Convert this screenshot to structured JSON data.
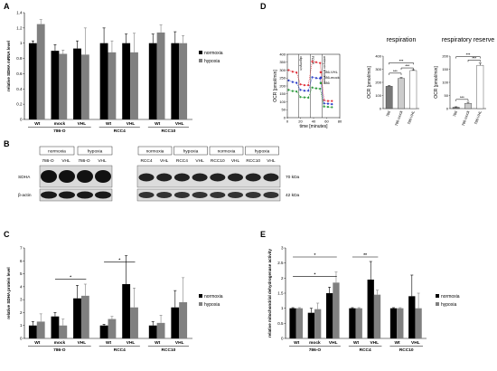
{
  "colors": {
    "normoxia": "#000000",
    "hypoxia": "#808080",
    "vhl_line": "#e0303a",
    "mock_line": "#2a3cc8",
    "c786_line": "#2a9a3a"
  },
  "panelA": {
    "letter": "A",
    "ylabel": "relative SDHA mRNA level",
    "legend": [
      "normoxia",
      "hypoxia"
    ],
    "sub_labels": [
      "Wt",
      "mock",
      "VHL",
      "Wt",
      "VHL",
      "Wt",
      "VHL"
    ],
    "groups": [
      "786-O",
      "RCC4",
      "RCC10"
    ],
    "chart_data": {
      "type": "bar",
      "categories": [
        "Wt",
        "mock",
        "VHL",
        "Wt",
        "VHL",
        "Wt",
        "VHL"
      ],
      "yticks": [
        "0",
        "0.2",
        "0.4",
        "0.6",
        "0.8",
        "1",
        "1.2",
        "1.4"
      ],
      "ylim": [
        0,
        1.4
      ],
      "series": [
        {
          "name": "normoxia",
          "values": [
            1.0,
            0.9,
            0.93,
            1.0,
            1.0,
            1.0,
            1.0
          ],
          "errors": [
            0.03,
            0.08,
            0.1,
            0.2,
            0.12,
            0.12,
            0.15
          ]
        },
        {
          "name": "hypoxia",
          "values": [
            1.25,
            0.86,
            0.85,
            0.88,
            0.88,
            1.14,
            1.0
          ],
          "errors": [
            0.06,
            0.05,
            0.35,
            0.15,
            0.25,
            0.1,
            0.1
          ]
        }
      ]
    }
  },
  "panelB": {
    "letter": "B",
    "left_conditions": [
      "normoxia",
      "hypoxia"
    ],
    "left_lanes": [
      "786-O",
      "VHL",
      "786-O",
      "VHL"
    ],
    "right_conditions": [
      "normoxia",
      "hypoxia",
      "normoxia",
      "hypoxia"
    ],
    "right_lanes": [
      "RCC4",
      "VHL",
      "RCC4",
      "VHL",
      "RCC10",
      "VHL",
      "RCC10",
      "VHL"
    ],
    "row_labels": [
      "SDHA",
      "β-actin"
    ],
    "sizes": [
      "70 kDa",
      "42 kDa"
    ]
  },
  "panelC": {
    "letter": "C",
    "ylabel": "relative SDHA protein level",
    "legend": [
      "normoxia",
      "hypoxia"
    ],
    "sub_labels": [
      "Wt",
      "mock",
      "VHL",
      "Wt",
      "VHL",
      "Wt",
      "VHL"
    ],
    "groups": [
      "786-O",
      "RCC4",
      "RCC10"
    ],
    "sig": [
      "*",
      "*"
    ],
    "chart_data": {
      "type": "bar",
      "categories": [
        "Wt",
        "mock",
        "VHL",
        "Wt",
        "VHL",
        "Wt",
        "VHL"
      ],
      "yticks": [
        "0",
        "1",
        "2",
        "3",
        "4",
        "5",
        "6",
        "7"
      ],
      "ylim": [
        0,
        7
      ],
      "series": [
        {
          "name": "normoxia",
          "values": [
            1.0,
            1.7,
            3.1,
            1.0,
            4.2,
            1.0,
            2.4
          ],
          "errors": [
            0.3,
            0.3,
            1.0,
            0.1,
            2.2,
            0.3,
            1.3
          ]
        },
        {
          "name": "hypoxia",
          "values": [
            1.3,
            1.0,
            3.3,
            1.5,
            2.4,
            1.2,
            2.8
          ],
          "errors": [
            0.6,
            0.5,
            0.9,
            0.2,
            1.5,
            0.6,
            1.9
          ]
        }
      ]
    }
  },
  "panelD": {
    "letter": "D",
    "line_chart": {
      "ylabel": "OCR [pmol/min]",
      "xlabel": "time [minutes]",
      "yticks": [
        "0",
        "50",
        "100",
        "150",
        "200",
        "250",
        "300",
        "350",
        "400"
      ],
      "xticks": [
        "0",
        "20",
        "40",
        "60",
        "80"
      ],
      "injections": [
        "oligomycin",
        "FCCP",
        "antimycin & rotenone"
      ],
      "legend": [
        "786-VHL",
        "786-mock",
        "786"
      ],
      "chart_data": {
        "type": "line",
        "x": [
          2,
          8,
          14,
          20,
          26,
          32,
          38,
          44,
          50,
          56,
          62,
          68
        ],
        "ylim": [
          0,
          400
        ],
        "xlim": [
          0,
          80
        ],
        "series": [
          {
            "name": "786-VHL",
            "values": [
              300,
              290,
              285,
              210,
              205,
              205,
              355,
              350,
              345,
              110,
              105,
              105
            ]
          },
          {
            "name": "786-mock",
            "values": [
              235,
              225,
              220,
              175,
              170,
              170,
              255,
              250,
              248,
              90,
              88,
              85
            ]
          },
          {
            "name": "786",
            "values": [
              175,
              168,
              165,
              130,
              128,
              126,
              190,
              185,
              182,
              70,
              68,
              66
            ]
          }
        ]
      }
    },
    "respiration": {
      "title": "respiration",
      "ylabel": "OCR [pmol/min]",
      "yticks": [
        "0",
        "100",
        "200",
        "300",
        "400"
      ],
      "categories": [
        "786",
        "786-mock",
        "786-VHL"
      ],
      "sig": [
        "***",
        "***",
        "***"
      ],
      "chart_data": {
        "type": "bar",
        "categories": [
          "786",
          "786-mock",
          "786-VHL"
        ],
        "values": [
          170,
          230,
          290
        ],
        "errors": [
          5,
          6,
          6
        ],
        "ylim": [
          0,
          400
        ]
      }
    },
    "reserve": {
      "title": "respiratory reserve",
      "ylabel": "OCR [pmol/min]",
      "yticks": [
        "0",
        "50",
        "100",
        "150",
        "200"
      ],
      "categories": [
        "786",
        "786-mock",
        "786-VHL"
      ],
      "sig": [
        "***",
        "***",
        "***"
      ],
      "chart_data": {
        "type": "bar",
        "categories": [
          "786",
          "786-mock",
          "786-VHL"
        ],
        "values": [
          5,
          20,
          165
        ],
        "errors": [
          2,
          4,
          8
        ],
        "ylim": [
          0,
          200
        ]
      }
    }
  },
  "panelE": {
    "letter": "E",
    "ylabel": "relative mitochondrial dehydrogenase activity",
    "legend": [
      "normoxia",
      "hypoxia"
    ],
    "sub_labels": [
      "Wt",
      "mock",
      "VHL",
      "Wt",
      "VHL",
      "Wt",
      "VHL"
    ],
    "groups": [
      "786-O",
      "RCC4",
      "RCC10"
    ],
    "sig": [
      "*",
      "*",
      "**"
    ],
    "chart_data": {
      "type": "bar",
      "categories": [
        "Wt",
        "mock",
        "VHL",
        "Wt",
        "VHL",
        "Wt",
        "VHL"
      ],
      "yticks": [
        "0",
        "0.5",
        "1",
        "1.5",
        "2",
        "2.5",
        "3"
      ],
      "ylim": [
        0,
        3
      ],
      "series": [
        {
          "name": "normoxia",
          "values": [
            1.0,
            0.85,
            1.5,
            1.0,
            1.95,
            1.0,
            1.4
          ],
          "errors": [
            0.02,
            0.15,
            0.2,
            0.02,
            0.6,
            0.02,
            0.7
          ]
        },
        {
          "name": "hypoxia",
          "values": [
            1.0,
            0.97,
            1.85,
            1.0,
            1.45,
            1.0,
            1.0
          ],
          "errors": [
            0.02,
            0.2,
            0.35,
            0.02,
            0.15,
            0.02,
            0.5
          ]
        }
      ]
    }
  }
}
